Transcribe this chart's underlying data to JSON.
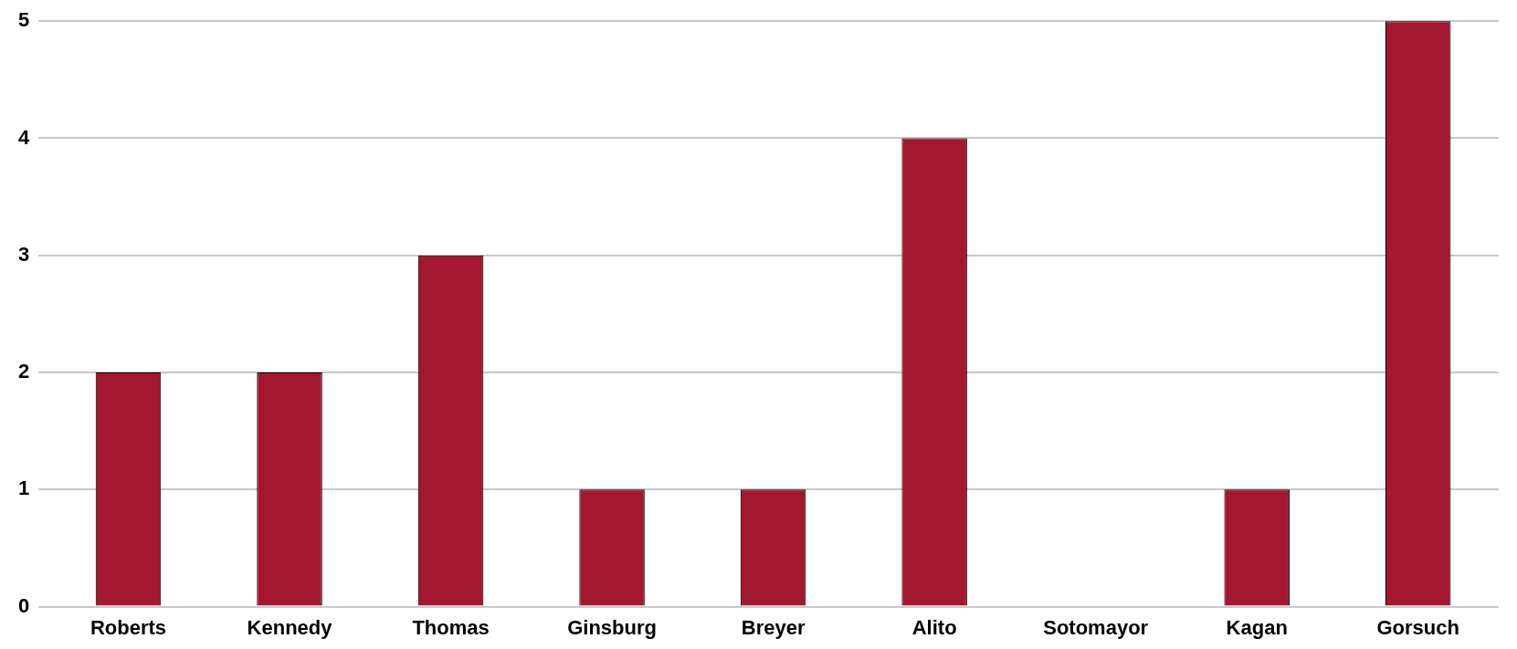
{
  "chart_data": {
    "type": "bar",
    "categories": [
      "Roberts",
      "Kennedy",
      "Thomas",
      "Ginsburg",
      "Breyer",
      "Alito",
      "Sotomayor",
      "Kagan",
      "Gorsuch"
    ],
    "values": [
      2,
      2,
      3,
      1,
      1,
      4,
      0,
      1,
      5
    ],
    "color": "#a31830",
    "ylim": [
      0,
      5
    ],
    "yticks": [
      0,
      1,
      2,
      3,
      4,
      5
    ],
    "grid": "y"
  }
}
